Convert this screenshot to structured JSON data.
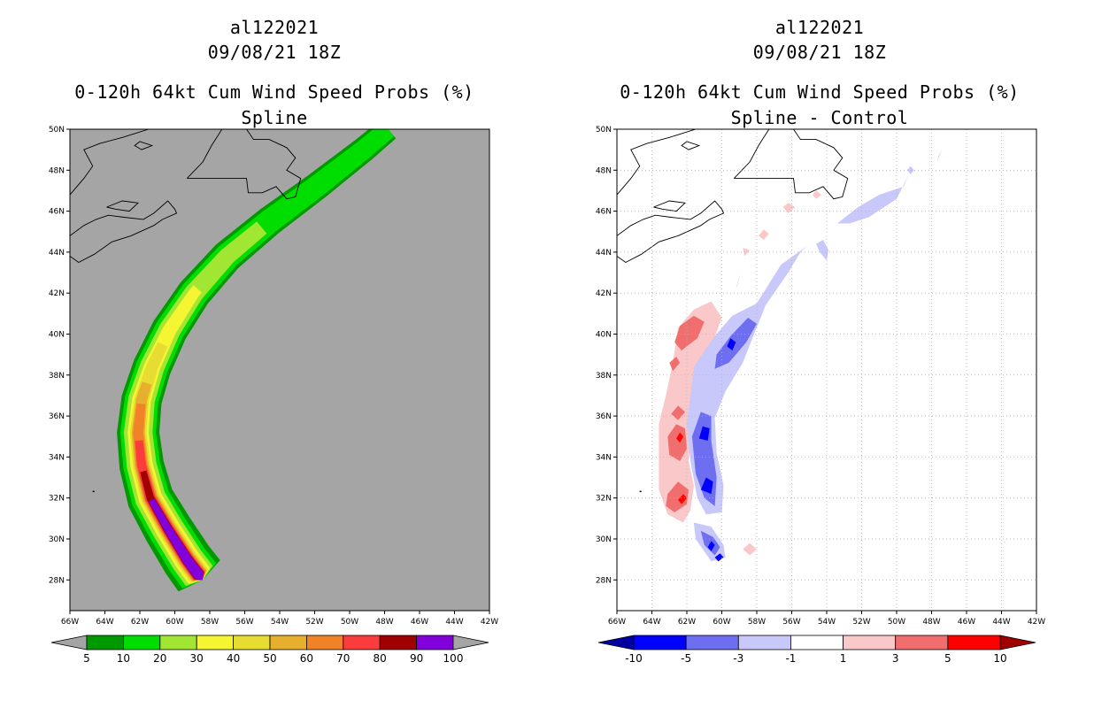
{
  "chart_data": [
    {
      "type": "contour-map",
      "storm_id": "al122021",
      "date_label": "09/08/21 18Z",
      "title": "0-120h 64kt Cum Wind Speed Probs (%)",
      "subtitle": "Spline",
      "x_ticks": [
        "66W",
        "64W",
        "62W",
        "60W",
        "58W",
        "56W",
        "54W",
        "52W",
        "50W",
        "48W",
        "46W",
        "44W",
        "42W"
      ],
      "y_ticks": [
        "50N",
        "48N",
        "46N",
        "44N",
        "42N",
        "40N",
        "38N",
        "36N",
        "34N",
        "32N",
        "30N",
        "28N"
      ],
      "lon_range": [
        -66,
        -42
      ],
      "lat_range": [
        26.5,
        50
      ],
      "grid": false,
      "background_color": "#a5a5a5",
      "colorbar": {
        "labels": [
          "5",
          "10",
          "20",
          "30",
          "40",
          "50",
          "60",
          "70",
          "80",
          "90",
          "100"
        ],
        "colors": [
          "#a5a5a5",
          "#009900",
          "#00dd00",
          "#a0e632",
          "#f5f532",
          "#e6dc32",
          "#e6af2d",
          "#f08228",
          "#fa3c3c",
          "#a00000",
          "#8200dc",
          "#a5a5a5"
        ]
      },
      "levels": [
        {
          "min": 5,
          "color": "#009900",
          "hw": [
            1.55,
            1.25,
            1.0,
            0.72
          ],
          "lat_end": 50
        },
        {
          "min": 10,
          "color": "#00dd00",
          "hw": [
            1.25,
            1.05,
            0.8,
            0.55
          ],
          "lat_end": 50
        },
        {
          "min": 20,
          "color": "#a0e632",
          "hw": [
            1.0,
            0.85,
            0.55,
            0.3
          ],
          "lat_end": 45.2
        },
        {
          "min": 30,
          "color": "#f5f532",
          "hw": [
            0.8,
            0.62,
            0.3,
            0.12
          ],
          "lat_end": 42.2
        },
        {
          "min": 40,
          "color": "#e6dc32",
          "hw": [
            0.65,
            0.48,
            0.18,
            0.05
          ],
          "lat_end": 39.5
        },
        {
          "min": 50,
          "color": "#e6af2d",
          "hw": [
            0.55,
            0.38,
            0.1,
            0.03
          ],
          "lat_end": 37.6
        },
        {
          "min": 60,
          "color": "#f08228",
          "hw": [
            0.48,
            0.3,
            0.05,
            0.02
          ],
          "lat_end": 36.6
        },
        {
          "min": 70,
          "color": "#fa3c3c",
          "hw": [
            0.42,
            0.22,
            0.02,
            0.01
          ],
          "lat_end": 34.8
        },
        {
          "min": 80,
          "color": "#a00000",
          "hw": [
            0.36,
            0.12,
            0.01,
            0.01
          ],
          "lat_end": 33.3
        },
        {
          "min": 90,
          "color": "#8200dc",
          "hw": [
            0.32,
            0.05,
            0.01,
            0.01
          ],
          "lat_end": 31.9
        }
      ],
      "track": [
        [
          -58.6,
          28.2
        ],
        [
          -59.3,
          29.0
        ],
        [
          -60.4,
          30.5
        ],
        [
          -61.4,
          32.0
        ],
        [
          -61.9,
          33.6
        ],
        [
          -62.1,
          35.2
        ],
        [
          -61.9,
          36.8
        ],
        [
          -61.3,
          38.4
        ],
        [
          -60.3,
          40.2
        ],
        [
          -58.9,
          42.0
        ],
        [
          -57.0,
          43.8
        ],
        [
          -54.6,
          45.5
        ],
        [
          -51.9,
          47.2
        ],
        [
          -49.2,
          49.0
        ],
        [
          -47.8,
          50.0
        ]
      ]
    },
    {
      "type": "contour-map",
      "storm_id": "al122021",
      "date_label": "09/08/21 18Z",
      "title": "0-120h 64kt Cum Wind Speed Probs (%)",
      "subtitle": "Spline - Control",
      "x_ticks": [
        "66W",
        "64W",
        "62W",
        "60W",
        "58W",
        "56W",
        "54W",
        "52W",
        "50W",
        "48W",
        "46W",
        "44W",
        "42W"
      ],
      "y_ticks": [
        "50N",
        "48N",
        "46N",
        "44N",
        "42N",
        "40N",
        "38N",
        "36N",
        "34N",
        "32N",
        "30N",
        "28N"
      ],
      "lon_range": [
        -66,
        -42
      ],
      "lat_range": [
        26.5,
        50
      ],
      "grid": true,
      "background_color": "#ffffff",
      "colorbar": {
        "labels": [
          "-10",
          "-5",
          "-3",
          "-1",
          "1",
          "3",
          "5",
          "10"
        ],
        "colors": [
          "#0000a0",
          "#0000ff",
          "#6e6ef0",
          "#c8c8fa",
          "#ffffff",
          "#fac8c8",
          "#f06e6e",
          "#ff0000",
          "#a00000"
        ]
      },
      "anomalies": [
        {
          "color": "#fac8c8",
          "pts": [
            [
              -62.2,
              30.8
            ],
            [
              -61.8,
              31.4
            ],
            [
              -61.6,
              32.6
            ],
            [
              -61.9,
              33.8
            ],
            [
              -61.7,
              35.2
            ],
            [
              -61.4,
              36.6
            ],
            [
              -61.2,
              38.0
            ],
            [
              -60.6,
              39.4
            ],
            [
              -60.0,
              40.8
            ],
            [
              -60.6,
              41.6
            ],
            [
              -61.6,
              41.2
            ],
            [
              -62.5,
              40.3
            ],
            [
              -62.8,
              38.6
            ],
            [
              -63.2,
              37.0
            ],
            [
              -63.6,
              35.6
            ],
            [
              -63.6,
              34.2
            ],
            [
              -63.6,
              32.4
            ],
            [
              -63.1,
              31.2
            ]
          ]
        },
        {
          "color": "#f06e6e",
          "pts": [
            [
              -62.3,
              39.2
            ],
            [
              -61.4,
              39.8
            ],
            [
              -61.0,
              40.6
            ],
            [
              -61.6,
              40.9
            ],
            [
              -62.4,
              40.4
            ],
            [
              -62.7,
              39.6
            ]
          ]
        },
        {
          "color": "#f06e6e",
          "pts": [
            [
              -62.8,
              38.2
            ],
            [
              -62.4,
              38.6
            ],
            [
              -62.6,
              38.9
            ],
            [
              -63.0,
              38.6
            ]
          ]
        },
        {
          "color": "#f06e6e",
          "pts": [
            [
              -62.4,
              33.8
            ],
            [
              -62.0,
              34.4
            ],
            [
              -62.1,
              35.4
            ],
            [
              -62.6,
              35.6
            ],
            [
              -63.1,
              35.0
            ],
            [
              -63.0,
              34.1
            ]
          ]
        },
        {
          "color": "#f06e6e",
          "pts": [
            [
              -62.5,
              35.8
            ],
            [
              -62.1,
              36.2
            ],
            [
              -62.5,
              36.5
            ],
            [
              -62.9,
              36.1
            ]
          ]
        },
        {
          "color": "#f06e6e",
          "pts": [
            [
              -62.7,
              31.3
            ],
            [
              -62.0,
              31.7
            ],
            [
              -61.9,
              32.4
            ],
            [
              -62.5,
              32.8
            ],
            [
              -63.1,
              32.2
            ],
            [
              -63.2,
              31.6
            ]
          ]
        },
        {
          "color": "#ff0000",
          "pts": [
            [
              -62.4,
              34.7
            ],
            [
              -62.2,
              35.0
            ],
            [
              -62.4,
              35.2
            ],
            [
              -62.6,
              34.9
            ]
          ]
        },
        {
          "color": "#ff0000",
          "pts": [
            [
              -62.3,
              31.7
            ],
            [
              -62.0,
              32.0
            ],
            [
              -62.2,
              32.2
            ],
            [
              -62.5,
              31.9
            ]
          ]
        },
        {
          "color": "#c8c8fa",
          "pts": [
            [
              -60.6,
              28.9
            ],
            [
              -59.8,
              29.1
            ],
            [
              -59.9,
              29.7
            ],
            [
              -60.6,
              30.6
            ],
            [
              -61.6,
              30.8
            ],
            [
              -61.5,
              30.0
            ]
          ]
        },
        {
          "color": "#c8c8fa",
          "pts": [
            [
              -60.0,
              31.3
            ],
            [
              -59.9,
              32.6
            ],
            [
              -60.3,
              34.2
            ],
            [
              -60.4,
              35.9
            ],
            [
              -59.8,
              37.2
            ],
            [
              -58.8,
              38.6
            ],
            [
              -58.2,
              39.9
            ],
            [
              -57.5,
              41.4
            ],
            [
              -56.2,
              43.0
            ],
            [
              -55.5,
              44.0
            ],
            [
              -55.1,
              44.3
            ],
            [
              -56.6,
              43.4
            ],
            [
              -58.0,
              41.5
            ],
            [
              -59.4,
              40.9
            ],
            [
              -60.5,
              39.8
            ],
            [
              -61.6,
              38.4
            ],
            [
              -61.8,
              37.0
            ],
            [
              -62.0,
              35.6
            ],
            [
              -61.8,
              33.8
            ],
            [
              -61.4,
              32.0
            ],
            [
              -60.9,
              31.2
            ]
          ]
        },
        {
          "color": "#c8c8fa",
          "pts": [
            [
              -54.6,
              44.4
            ],
            [
              -54.4,
              44.0
            ],
            [
              -54.0,
              43.6
            ],
            [
              -53.9,
              44.1
            ],
            [
              -54.2,
              44.6
            ]
          ]
        },
        {
          "color": "#c8c8fa",
          "pts": [
            [
              -53.4,
              45.4
            ],
            [
              -52.2,
              46.2
            ],
            [
              -51.0,
              46.8
            ],
            [
              -49.6,
              47.2
            ],
            [
              -49.3,
              47.8
            ],
            [
              -50.0,
              46.6
            ],
            [
              -51.6,
              45.7
            ],
            [
              -52.7,
              45.4
            ]
          ]
        },
        {
          "color": "#c8c8fa",
          "pts": [
            [
              -47.8,
              48.1
            ],
            [
              -47.6,
              48.7
            ],
            [
              -47.4,
              49.0
            ],
            [
              -47.7,
              48.4
            ]
          ]
        },
        {
          "color": "#c8c8fa",
          "pts": [
            [
              -49.2,
              47.8
            ],
            [
              -49.0,
              48.0
            ],
            [
              -49.2,
              48.2
            ],
            [
              -49.4,
              48.0
            ]
          ]
        },
        {
          "color": "#6e6ef0",
          "pts": [
            [
              -60.4,
              29.2
            ],
            [
              -60.1,
              29.6
            ],
            [
              -60.5,
              30.1
            ],
            [
              -61.2,
              30.4
            ],
            [
              -61.0,
              29.7
            ]
          ]
        },
        {
          "color": "#6e6ef0",
          "pts": [
            [
              -60.4,
              31.6
            ],
            [
              -60.3,
              33.0
            ],
            [
              -60.6,
              34.8
            ],
            [
              -60.6,
              36.0
            ],
            [
              -61.2,
              36.2
            ],
            [
              -61.7,
              35.0
            ],
            [
              -61.5,
              33.2
            ],
            [
              -61.0,
              32.0
            ]
          ]
        },
        {
          "color": "#6e6ef0",
          "pts": [
            [
              -59.6,
              38.6
            ],
            [
              -58.6,
              39.6
            ],
            [
              -58.0,
              40.5
            ],
            [
              -58.5,
              40.8
            ],
            [
              -59.5,
              39.9
            ],
            [
              -60.3,
              39.0
            ],
            [
              -60.4,
              38.3
            ]
          ]
        },
        {
          "color": "#0000ff",
          "pts": [
            [
              -60.6,
              32.2
            ],
            [
              -60.5,
              32.8
            ],
            [
              -60.9,
              33.0
            ],
            [
              -61.2,
              32.4
            ]
          ]
        },
        {
          "color": "#0000ff",
          "pts": [
            [
              -60.8,
              34.8
            ],
            [
              -60.7,
              35.4
            ],
            [
              -61.1,
              35.5
            ],
            [
              -61.3,
              34.9
            ]
          ]
        },
        {
          "color": "#0000ff",
          "pts": [
            [
              -59.4,
              39.2
            ],
            [
              -59.2,
              39.6
            ],
            [
              -59.5,
              39.8
            ],
            [
              -59.7,
              39.4
            ]
          ]
        },
        {
          "color": "#0000ff",
          "pts": [
            [
              -60.2,
              28.9
            ],
            [
              -59.9,
              29.1
            ],
            [
              -60.1,
              29.3
            ],
            [
              -60.4,
              29.1
            ]
          ]
        },
        {
          "color": "#0000ff",
          "pts": [
            [
              -60.6,
              29.4
            ],
            [
              -60.4,
              29.7
            ],
            [
              -60.6,
              29.9
            ],
            [
              -60.8,
              29.6
            ]
          ]
        },
        {
          "color": "#fac8c8",
          "pts": [
            [
              -56.2,
              45.9
            ],
            [
              -55.8,
              46.2
            ],
            [
              -56.2,
              46.4
            ],
            [
              -56.5,
              46.2
            ]
          ]
        },
        {
          "color": "#fac8c8",
          "pts": [
            [
              -57.6,
              44.6
            ],
            [
              -57.3,
              44.9
            ],
            [
              -57.6,
              45.1
            ],
            [
              -57.9,
              44.8
            ]
          ]
        },
        {
          "color": "#fac8c8",
          "pts": [
            [
              -59.2,
              42.2
            ],
            [
              -58.9,
              43.1
            ],
            [
              -59.1,
              42.4
            ]
          ]
        },
        {
          "color": "#fac8c8",
          "pts": [
            [
              -58.7,
              43.8
            ],
            [
              -58.4,
              44.1
            ],
            [
              -58.8,
              44.2
            ]
          ]
        },
        {
          "color": "#fac8c8",
          "pts": [
            [
              -58.4,
              29.2
            ],
            [
              -58.0,
              29.5
            ],
            [
              -58.4,
              29.8
            ],
            [
              -58.8,
              29.5
            ]
          ]
        },
        {
          "color": "#fac8c8",
          "pts": [
            [
              -54.6,
              46.6
            ],
            [
              -54.3,
              46.8
            ],
            [
              -54.6,
              47.0
            ],
            [
              -54.8,
              46.8
            ]
          ]
        }
      ]
    }
  ]
}
